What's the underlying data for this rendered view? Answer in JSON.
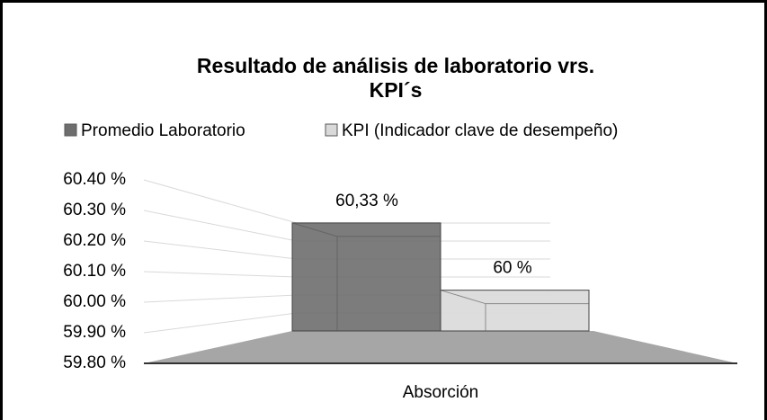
{
  "chart_data": {
    "type": "bar3d",
    "title": "Resultado de análisis de laboratorio vrs.",
    "title_line2": "KPI´s",
    "categories": [
      "Absorción"
    ],
    "series": [
      {
        "name": "Promedio Laboratorio",
        "color": "#6e6e6e",
        "values": [
          60.33
        ],
        "value_labels": [
          "60,33 %"
        ]
      },
      {
        "name": "KPI (Indicador clave de desempeño)",
        "color": "#d9d9d9",
        "values": [
          60
        ],
        "value_labels": [
          "60 %"
        ]
      }
    ],
    "ylim": [
      59.8,
      60.4
    ],
    "yticks": [
      {
        "value": 59.8,
        "label": "59.80 %"
      },
      {
        "value": 59.9,
        "label": "59.90 %"
      },
      {
        "value": 60.0,
        "label": "60.00 %"
      },
      {
        "value": 60.1,
        "label": "60.10 %"
      },
      {
        "value": 60.2,
        "label": "60.20 %"
      },
      {
        "value": 60.3,
        "label": "60.30 %"
      },
      {
        "value": 60.4,
        "label": "60.40 %"
      }
    ],
    "grid": true,
    "legend": "top"
  }
}
